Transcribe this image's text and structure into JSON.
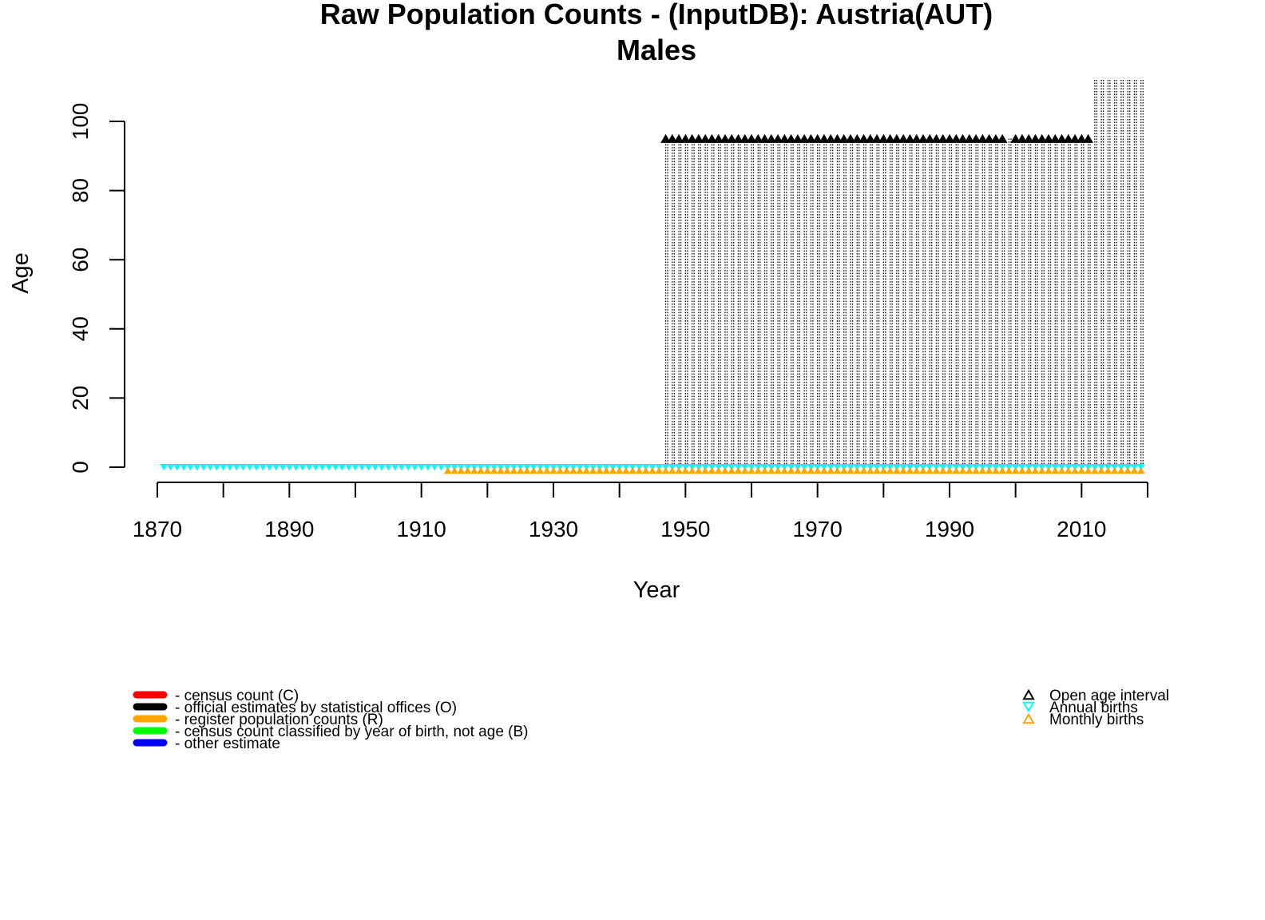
{
  "chart_data": {
    "type": "scatter",
    "title": "Raw Population Counts - (InputDB): Austria(AUT)",
    "subtitle": "Males",
    "xlabel": "Year",
    "ylabel": "Age",
    "xlim": [
      1866,
      2021
    ],
    "ylim": [
      -4.5,
      112
    ],
    "x_ticks": [
      "1870",
      "1890",
      "1910",
      "1930",
      "1950",
      "1970",
      "1990",
      "2010"
    ],
    "y_ticks": [
      "0",
      "20",
      "40",
      "60",
      "80",
      "100"
    ],
    "grid": false,
    "colors": {
      "census": "#ff0000",
      "official": "#000000",
      "register": "#ffa500",
      "birth_year": "#00ff00",
      "other": "#0000ff",
      "open_age": "#000000",
      "annual_births": "#00ffff",
      "monthly_births": "#ffa500"
    },
    "series": [
      {
        "name": "Annual births",
        "marker": "triangle-down",
        "color": "#00ffff",
        "age": 0,
        "x_range": [
          1871,
          2019
        ]
      },
      {
        "name": "Monthly births",
        "marker": "triangle-up",
        "color": "#ffa500",
        "age": -1,
        "x_range": [
          1914,
          2019
        ]
      },
      {
        "name": "official estimates by statistical offices (O)",
        "style": "dotted-vertical",
        "color": "#000000",
        "segments": [
          {
            "x_range": [
              1947,
              2011
            ],
            "age_range": [
              0,
              95
            ]
          },
          {
            "x_range": [
              2012,
              2019
            ],
            "age_range": [
              0,
              112
            ]
          }
        ]
      },
      {
        "name": "Open age interval",
        "marker": "triangle-up",
        "color": "#000000",
        "age": 95,
        "x": [
          1947,
          1948,
          1949,
          1950,
          1951,
          1952,
          1953,
          1954,
          1955,
          1956,
          1957,
          1958,
          1959,
          1960,
          1961,
          1962,
          1963,
          1964,
          1965,
          1966,
          1967,
          1968,
          1969,
          1970,
          1971,
          1972,
          1973,
          1974,
          1975,
          1976,
          1977,
          1978,
          1979,
          1980,
          1981,
          1982,
          1983,
          1984,
          1985,
          1986,
          1987,
          1988,
          1989,
          1990,
          1991,
          1992,
          1993,
          1994,
          1995,
          1996,
          1997,
          1998,
          2000,
          2001,
          2002,
          2003,
          2004,
          2005,
          2006,
          2007,
          2008,
          2009,
          2010,
          2011
        ]
      }
    ],
    "legend_left": {
      "placement": "bottom-left",
      "items": [
        {
          "label": "- census count (C)",
          "color": "#ff0000"
        },
        {
          "label": "- official estimates by statistical offices (O)",
          "color": "#000000"
        },
        {
          "label": "- register population counts (R)",
          "color": "#ffa500"
        },
        {
          "label": "- census count classified by year of birth, not age (B)",
          "color": "#00ff00"
        },
        {
          "label": "- other estimate",
          "color": "#0000ff"
        }
      ]
    },
    "legend_right": {
      "placement": "bottom-right",
      "items": [
        {
          "label": "Open age interval",
          "marker": "triangle-up",
          "color": "#000000"
        },
        {
          "label": "Annual births",
          "marker": "triangle-down",
          "color": "#00ffff"
        },
        {
          "label": "Monthly births",
          "marker": "triangle-up",
          "color": "#ffa500"
        }
      ]
    }
  }
}
